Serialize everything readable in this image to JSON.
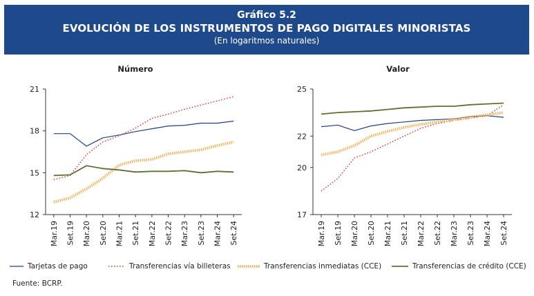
{
  "header": {
    "figure_label": "Gráfico 5.2",
    "title": "EVOLUCIÓN DE LOS INSTRUMENTOS DE PAGO DIGITALES MINORISTAS",
    "subtitle": "(En logaritmos naturales)"
  },
  "series_styles": [
    {
      "name": "Tarjetas de pago",
      "color": "#1f3f85",
      "style": "solid"
    },
    {
      "name": "Transferencias vía billeteras",
      "color": "#d9352e",
      "style": "dotted"
    },
    {
      "name": "Transferencias inmediatas (CCE)",
      "color": "#f5b25c",
      "style": "thick-dashed"
    },
    {
      "name": "Transferencias de crédito (CCE)",
      "color": "#5e6f30",
      "style": "solid"
    }
  ],
  "chart_data": [
    {
      "type": "line",
      "title": "Número",
      "x": [
        "Mar.19",
        "Set.19",
        "Mar.20",
        "Set.20",
        "Mar.21",
        "Set.21",
        "Mar.22",
        "Set.22",
        "Mar.23",
        "Set.23",
        "Mar.24",
        "Set.24"
      ],
      "ylim": [
        12,
        21
      ],
      "yticks": [
        12,
        15,
        18,
        21
      ],
      "series": [
        {
          "name": "Tarjetas de pago",
          "values": [
            17.8,
            17.8,
            16.9,
            17.5,
            17.7,
            17.95,
            18.15,
            18.35,
            18.4,
            18.55,
            18.55,
            18.7
          ]
        },
        {
          "name": "Transferencias vía billeteras",
          "values": [
            14.5,
            14.8,
            16.3,
            17.2,
            17.65,
            18.2,
            18.9,
            19.2,
            19.55,
            19.85,
            20.15,
            20.45
          ]
        },
        {
          "name": "Transferencias inmediatas (CCE)",
          "values": [
            12.9,
            13.2,
            13.85,
            14.6,
            15.55,
            15.85,
            15.95,
            16.35,
            16.5,
            16.65,
            16.95,
            17.2
          ]
        },
        {
          "name": "Transferencias de crédito (CCE)",
          "values": [
            14.8,
            14.85,
            15.5,
            15.3,
            15.2,
            15.05,
            15.1,
            15.1,
            15.15,
            15.0,
            15.1,
            15.05
          ]
        }
      ]
    },
    {
      "type": "line",
      "title": "Valor",
      "x": [
        "Mar.19",
        "Set.19",
        "Mar.20",
        "Set.20",
        "Mar.21",
        "Set.21",
        "Mar.22",
        "Set.22",
        "Mar.23",
        "Set.23",
        "Mar.24",
        "Set.24"
      ],
      "ylim": [
        17,
        25
      ],
      "yticks": [
        17,
        20,
        22,
        25
      ],
      "series": [
        {
          "name": "Tarjetas de pago",
          "values": [
            22.6,
            22.7,
            22.35,
            22.65,
            22.8,
            22.9,
            23.0,
            23.05,
            23.1,
            23.25,
            23.3,
            23.2
          ]
        },
        {
          "name": "Transferencias vía billeteras",
          "values": [
            18.5,
            19.3,
            20.6,
            21.0,
            21.5,
            22.0,
            22.5,
            22.8,
            23.0,
            23.15,
            23.3,
            24.0
          ]
        },
        {
          "name": "Transferencias inmediatas (CCE)",
          "values": [
            20.8,
            21.0,
            21.4,
            22.0,
            22.3,
            22.55,
            22.75,
            22.9,
            23.05,
            23.2,
            23.35,
            23.5
          ]
        },
        {
          "name": "Transferencias de crédito (CCE)",
          "values": [
            23.4,
            23.5,
            23.55,
            23.6,
            23.7,
            23.8,
            23.85,
            23.9,
            23.9,
            24.0,
            24.05,
            24.1
          ]
        }
      ]
    }
  ],
  "source": "Fuente: BCRP."
}
